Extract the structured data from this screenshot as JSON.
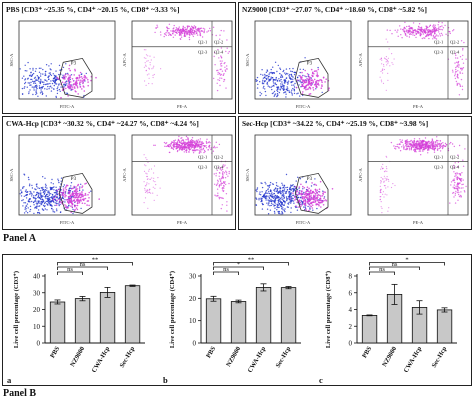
{
  "panel_a": {
    "label": "Panel A",
    "quadrants": [
      {
        "title": "PBS [CD3⁺ ~25.35 %, CD4⁺ ~20.15 %, CD8⁺ ~3.33 %]"
      },
      {
        "title": "NZ9000 [CD3⁺ ~27.07 %, CD4⁺ ~18.60 %, CD8⁺ ~5.82 %]"
      },
      {
        "title": "CWA-Hcp [CD3⁺ ~30.32 %, CD4⁺ ~24.27 %, CD8⁺ ~4.24 %]"
      },
      {
        "title": "Sec-Hcp [CD3⁺ ~34.22 %, CD4⁺ ~25.19 %, CD8⁺ ~3.98 %]"
      }
    ],
    "left_plot": {
      "gate": "P3",
      "xlabel": "FITC-A",
      "ylabel": "SSC-A"
    },
    "right_plot": {
      "xlabel": "PE-A",
      "ylabel": "APC-A",
      "q1": "Q2-1",
      "q2": "Q2-2",
      "q3": "Q2-3",
      "q4": "Q2-4"
    },
    "colors": {
      "blue": "#2233cc",
      "pink": "#d43fd8",
      "gate": "#333333",
      "quad_line": "#444444"
    }
  },
  "panel_b": {
    "label": "Panel B",
    "colors": {
      "bar": "#c8c8c8",
      "bar_edge": "#111111"
    },
    "sig_labels": {
      "ns": "ns",
      "star1": "*",
      "star2": "**"
    }
  },
  "chart_data": [
    {
      "type": "bar",
      "letter": "a",
      "categories": [
        "PBS",
        "NZ9000",
        "CWA-Hcp",
        "Sec-Hcp"
      ],
      "values": [
        24.5,
        26.5,
        30.2,
        34.2
      ],
      "errors": [
        1.2,
        1.3,
        3.0,
        0.4
      ],
      "ylabel": "Live cell percentage (CD3⁺)",
      "ylim": [
        0,
        40
      ],
      "yticks": [
        0,
        10,
        20,
        30,
        40
      ],
      "ytick_labels": [
        "0",
        "10",
        "20",
        "30",
        "40"
      ],
      "brackets": [
        {
          "from": 0,
          "to": 1,
          "label": "ns"
        },
        {
          "from": 0,
          "to": 2,
          "label": "ns"
        },
        {
          "from": 0,
          "to": 3,
          "label": "**"
        }
      ]
    },
    {
      "type": "bar",
      "letter": "b",
      "categories": [
        "PBS",
        "NZ9000",
        "CWA-Hcp",
        "Sec-Hcp"
      ],
      "values": [
        19.8,
        18.6,
        24.9,
        24.8
      ],
      "errors": [
        1.1,
        0.6,
        1.6,
        0.5
      ],
      "ylabel": "Live cell percentage (CD4⁺)",
      "ylim": [
        0,
        30
      ],
      "yticks": [
        0,
        10,
        20,
        30
      ],
      "ytick_labels": [
        "0",
        "10",
        "20",
        "30"
      ],
      "brackets": [
        {
          "from": 0,
          "to": 1,
          "label": "ns"
        },
        {
          "from": 0,
          "to": 2,
          "label": "*"
        },
        {
          "from": 0,
          "to": 3,
          "label": "**"
        }
      ]
    },
    {
      "type": "bar",
      "letter": "c",
      "categories": [
        "PBS",
        "NZ9000",
        "CWA-Hcp",
        "Sec-Hcp"
      ],
      "values": [
        3.3,
        5.8,
        4.25,
        3.95
      ],
      "errors": [
        0.05,
        1.2,
        0.8,
        0.25
      ],
      "ylabel": "Live cell percentage (CD8⁺)",
      "ylim": [
        0,
        8
      ],
      "yticks": [
        0,
        2,
        4,
        6,
        8
      ],
      "ytick_labels": [
        "0",
        "2",
        "4",
        "6",
        "8"
      ],
      "brackets": [
        {
          "from": 0,
          "to": 1,
          "label": "ns"
        },
        {
          "from": 0,
          "to": 2,
          "label": "ns"
        },
        {
          "from": 0,
          "to": 3,
          "label": "*"
        }
      ]
    }
  ]
}
